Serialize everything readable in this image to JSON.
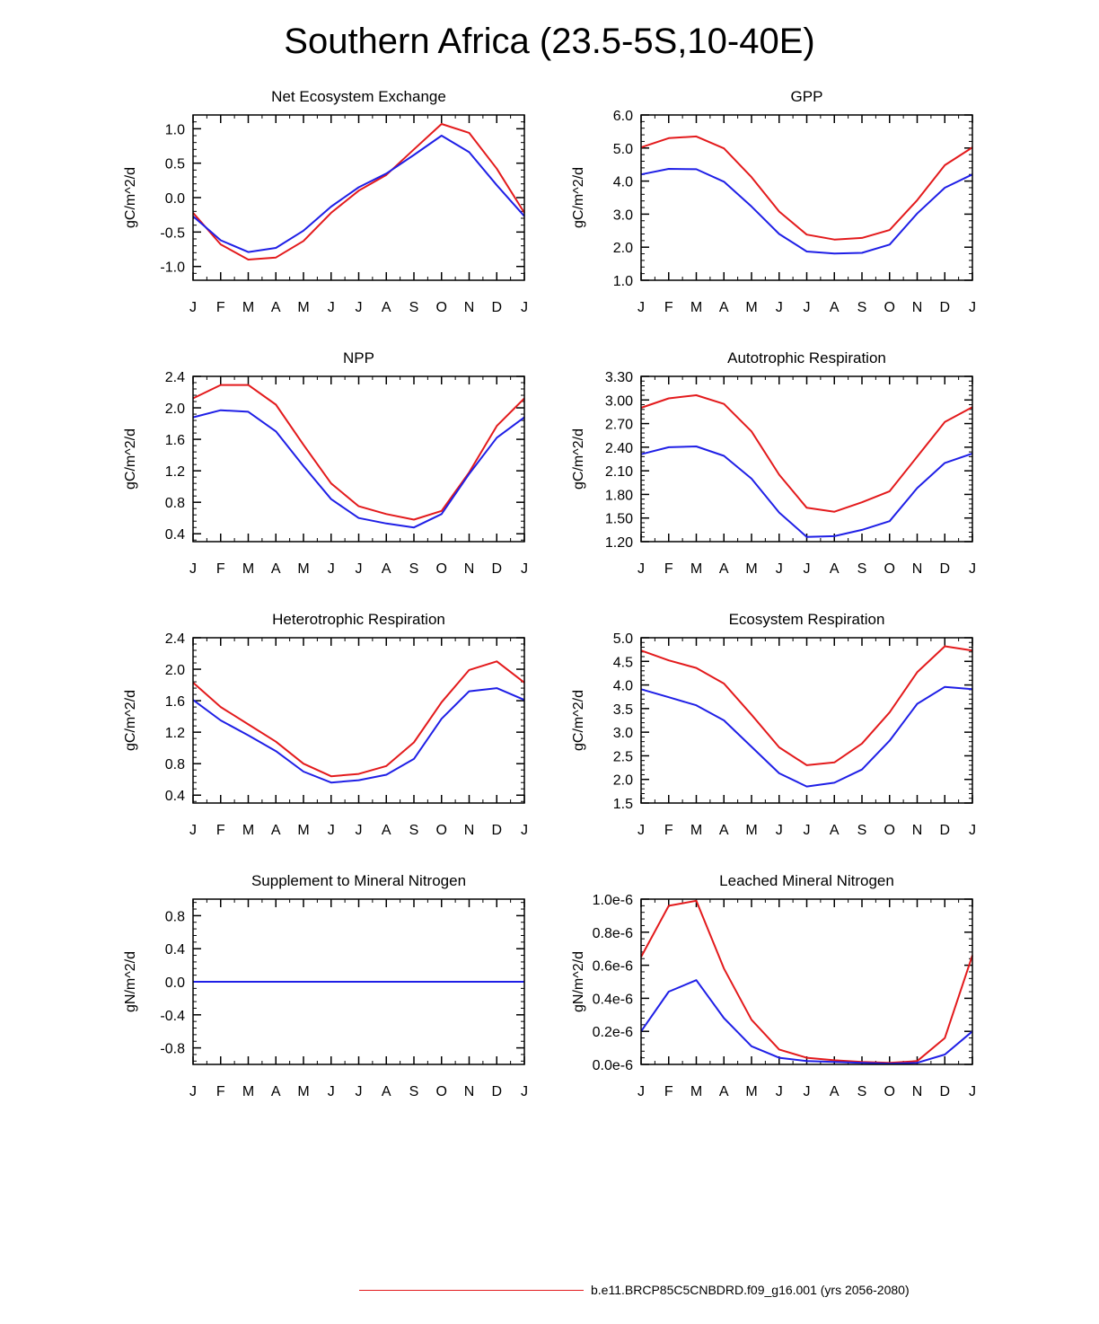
{
  "page": {
    "title": "Southern Africa (23.5-5S,10-40E)"
  },
  "legend": {
    "label": "b.e11.BRCP85C5CNBDRD.f09_g16.001 (yrs 2056-2080)",
    "color": "#e31a1c"
  },
  "colors": {
    "series_a": "#e31a1c",
    "series_b": "#1f1fe6"
  },
  "chart_data": [
    {
      "type": "line",
      "title": "Net Ecosystem Exchange",
      "ylabel": "gC/m^2/d",
      "x": [
        "J",
        "F",
        "M",
        "A",
        "M",
        "J",
        "J",
        "A",
        "S",
        "O",
        "N",
        "D",
        "J"
      ],
      "ylim": [
        -1.2,
        1.2
      ],
      "yticks": [
        -1.0,
        -0.5,
        0.0,
        0.5,
        1.0
      ],
      "ytick_labels": [
        "-1.0",
        "-0.5",
        "0.0",
        "0.5",
        "1.0"
      ],
      "series": [
        {
          "name": "red",
          "color": "#e31a1c",
          "values": [
            -0.22,
            -0.68,
            -0.9,
            -0.87,
            -0.63,
            -0.22,
            0.1,
            0.33,
            0.7,
            1.07,
            0.94,
            0.42,
            -0.22
          ]
        },
        {
          "name": "blue",
          "color": "#1f1fe6",
          "values": [
            -0.27,
            -0.62,
            -0.79,
            -0.73,
            -0.48,
            -0.13,
            0.15,
            0.35,
            0.62,
            0.9,
            0.66,
            0.18,
            -0.27
          ]
        }
      ]
    },
    {
      "type": "line",
      "title": "GPP",
      "ylabel": "gC/m^2/d",
      "x": [
        "J",
        "F",
        "M",
        "A",
        "M",
        "J",
        "J",
        "A",
        "S",
        "O",
        "N",
        "D",
        "J"
      ],
      "ylim": [
        1.0,
        6.0
      ],
      "yticks": [
        1.0,
        2.0,
        3.0,
        4.0,
        5.0,
        6.0
      ],
      "ytick_labels": [
        "1.0",
        "2.0",
        "3.0",
        "4.0",
        "5.0",
        "6.0"
      ],
      "series": [
        {
          "name": "red",
          "color": "#e31a1c",
          "values": [
            5.02,
            5.3,
            5.35,
            4.99,
            4.12,
            3.08,
            2.38,
            2.23,
            2.28,
            2.52,
            3.42,
            4.48,
            5.02
          ]
        },
        {
          "name": "blue",
          "color": "#1f1fe6",
          "values": [
            4.2,
            4.37,
            4.36,
            3.98,
            3.23,
            2.4,
            1.87,
            1.81,
            1.83,
            2.08,
            3.02,
            3.8,
            4.2
          ]
        }
      ]
    },
    {
      "type": "line",
      "title": "NPP",
      "ylabel": "gC/m^2/d",
      "x": [
        "J",
        "F",
        "M",
        "A",
        "M",
        "J",
        "J",
        "A",
        "S",
        "O",
        "N",
        "D",
        "J"
      ],
      "ylim": [
        0.3,
        2.4
      ],
      "yticks": [
        0.4,
        0.8,
        1.2,
        1.6,
        2.0,
        2.4
      ],
      "ytick_labels": [
        "0.4",
        "0.8",
        "1.2",
        "1.6",
        "2.0",
        "2.4"
      ],
      "series": [
        {
          "name": "red",
          "color": "#e31a1c",
          "values": [
            2.12,
            2.29,
            2.29,
            2.04,
            1.53,
            1.04,
            0.75,
            0.65,
            0.58,
            0.69,
            1.18,
            1.77,
            2.12
          ]
        },
        {
          "name": "blue",
          "color": "#1f1fe6",
          "values": [
            1.88,
            1.97,
            1.95,
            1.7,
            1.26,
            0.84,
            0.6,
            0.53,
            0.48,
            0.65,
            1.16,
            1.62,
            1.88
          ]
        }
      ]
    },
    {
      "type": "line",
      "title": "Autotrophic Respiration",
      "ylabel": "gC/m^2/d",
      "x": [
        "J",
        "F",
        "M",
        "A",
        "M",
        "J",
        "J",
        "A",
        "S",
        "O",
        "N",
        "D",
        "J"
      ],
      "ylim": [
        1.2,
        3.3
      ],
      "yticks": [
        1.2,
        1.5,
        1.8,
        2.1,
        2.4,
        2.7,
        3.0,
        3.3
      ],
      "ytick_labels": [
        "1.20",
        "1.50",
        "1.80",
        "2.10",
        "2.40",
        "2.70",
        "3.00",
        "3.30"
      ],
      "series": [
        {
          "name": "red",
          "color": "#e31a1c",
          "values": [
            2.9,
            3.02,
            3.06,
            2.95,
            2.6,
            2.05,
            1.63,
            1.58,
            1.7,
            1.84,
            2.28,
            2.72,
            2.91
          ]
        },
        {
          "name": "blue",
          "color": "#1f1fe6",
          "values": [
            2.31,
            2.4,
            2.41,
            2.29,
            2.0,
            1.57,
            1.26,
            1.27,
            1.35,
            1.46,
            1.88,
            2.2,
            2.32
          ]
        }
      ]
    },
    {
      "type": "line",
      "title": "Heterotrophic Respiration",
      "ylabel": "gC/m^2/d",
      "x": [
        "J",
        "F",
        "M",
        "A",
        "M",
        "J",
        "J",
        "A",
        "S",
        "O",
        "N",
        "D",
        "J"
      ],
      "ylim": [
        0.3,
        2.4
      ],
      "yticks": [
        0.4,
        0.8,
        1.2,
        1.6,
        2.0,
        2.4
      ],
      "ytick_labels": [
        "0.4",
        "0.8",
        "1.2",
        "1.6",
        "2.0",
        "2.4"
      ],
      "series": [
        {
          "name": "red",
          "color": "#e31a1c",
          "values": [
            1.83,
            1.52,
            1.3,
            1.08,
            0.8,
            0.64,
            0.67,
            0.77,
            1.07,
            1.58,
            1.99,
            2.1,
            1.83
          ]
        },
        {
          "name": "blue",
          "color": "#1f1fe6",
          "values": [
            1.61,
            1.35,
            1.16,
            0.96,
            0.7,
            0.56,
            0.59,
            0.66,
            0.86,
            1.37,
            1.72,
            1.76,
            1.61
          ]
        }
      ]
    },
    {
      "type": "line",
      "title": "Ecosystem Respiration",
      "ylabel": "gC/m^2/d",
      "x": [
        "J",
        "F",
        "M",
        "A",
        "M",
        "J",
        "J",
        "A",
        "S",
        "O",
        "N",
        "D",
        "J"
      ],
      "ylim": [
        1.5,
        5.0
      ],
      "yticks": [
        1.5,
        2.0,
        2.5,
        3.0,
        3.5,
        4.0,
        4.5,
        5.0
      ],
      "ytick_labels": [
        "1.5",
        "2.0",
        "2.5",
        "3.0",
        "3.5",
        "4.0",
        "4.5",
        "5.0"
      ],
      "series": [
        {
          "name": "red",
          "color": "#e31a1c",
          "values": [
            4.73,
            4.52,
            4.36,
            4.03,
            3.37,
            2.68,
            2.3,
            2.36,
            2.76,
            3.42,
            4.27,
            4.82,
            4.73
          ]
        },
        {
          "name": "blue",
          "color": "#1f1fe6",
          "values": [
            3.91,
            3.74,
            3.57,
            3.25,
            2.69,
            2.13,
            1.85,
            1.93,
            2.21,
            2.82,
            3.6,
            3.96,
            3.91
          ]
        }
      ]
    },
    {
      "type": "line",
      "title": "Supplement to Mineral Nitrogen",
      "ylabel": "gN/m^2/d",
      "x": [
        "J",
        "F",
        "M",
        "A",
        "M",
        "J",
        "J",
        "A",
        "S",
        "O",
        "N",
        "D",
        "J"
      ],
      "ylim": [
        -1.0,
        1.0
      ],
      "yticks": [
        -0.8,
        -0.4,
        0.0,
        0.4,
        0.8
      ],
      "ytick_labels": [
        "-0.8",
        "-0.4",
        "0.0",
        "0.4",
        "0.8"
      ],
      "series": [
        {
          "name": "red",
          "color": "#e31a1c",
          "values": [
            0,
            0,
            0,
            0,
            0,
            0,
            0,
            0,
            0,
            0,
            0,
            0,
            0
          ]
        },
        {
          "name": "blue",
          "color": "#1f1fe6",
          "values": [
            0,
            0,
            0,
            0,
            0,
            0,
            0,
            0,
            0,
            0,
            0,
            0,
            0
          ]
        }
      ]
    },
    {
      "type": "line",
      "title": "Leached Mineral Nitrogen",
      "ylabel": "gN/m^2/d",
      "x": [
        "J",
        "F",
        "M",
        "A",
        "M",
        "J",
        "J",
        "A",
        "S",
        "O",
        "N",
        "D",
        "J"
      ],
      "ylim": [
        0.0,
        1.0
      ],
      "yticks": [
        0.0,
        0.2,
        0.4,
        0.6,
        0.8,
        1.0
      ],
      "ytick_labels": [
        "0.0e-6",
        "0.2e-6",
        "0.4e-6",
        "0.6e-6",
        "0.8e-6",
        "1.0e-6"
      ],
      "series": [
        {
          "name": "red",
          "color": "#e31a1c",
          "values": [
            0.65,
            0.96,
            0.99,
            0.58,
            0.27,
            0.09,
            0.04,
            0.025,
            0.015,
            0.01,
            0.02,
            0.16,
            0.66
          ]
        },
        {
          "name": "blue",
          "color": "#1f1fe6",
          "values": [
            0.2,
            0.44,
            0.51,
            0.28,
            0.11,
            0.04,
            0.02,
            0.015,
            0.01,
            0.005,
            0.01,
            0.06,
            0.2
          ]
        }
      ]
    }
  ]
}
